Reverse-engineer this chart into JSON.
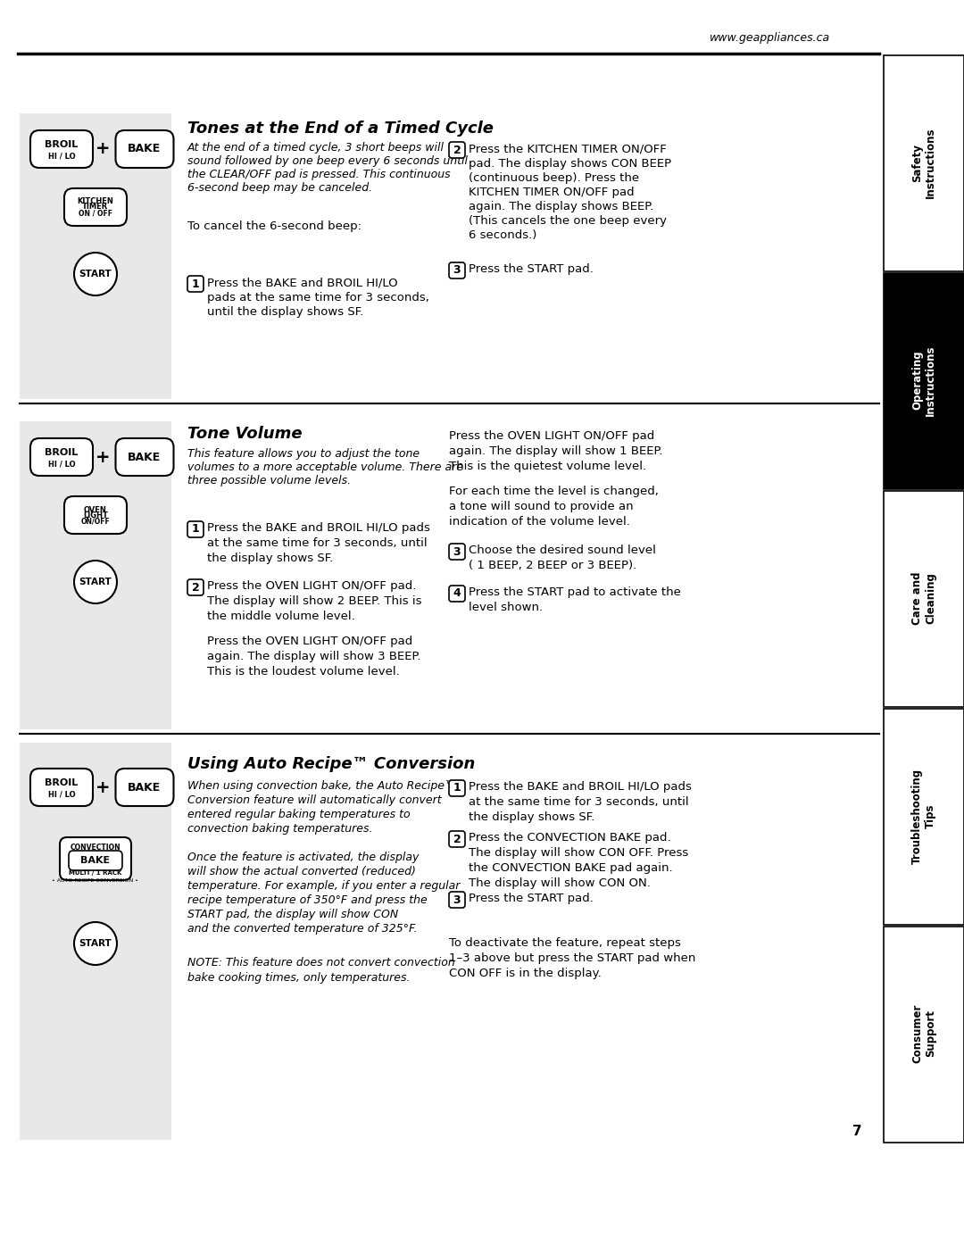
{
  "website": "www.geappliances.ca",
  "page_number": "7",
  "bg_color": "#ffffff",
  "sidebar_bg": "#000000",
  "sidebar_labels": [
    "Safety\nInstructions",
    "Operating\nInstructions",
    "Care and\nCleaning",
    "Troubleshooting\nTips",
    "Consumer\nSupport"
  ],
  "sidebar_active": 1,
  "section1_title": "Tones at the End of a Timed Cycle",
  "section2_title": "Tone Volume",
  "section3_title": "Using Auto Recipe™ Conversion",
  "gray_box_color": "#e8e8e8"
}
